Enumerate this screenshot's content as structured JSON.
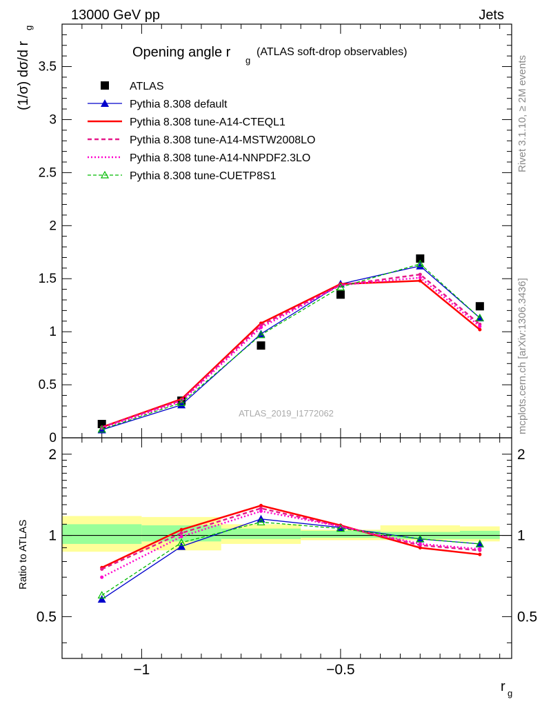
{
  "header": {
    "left": "13000 GeV pp",
    "right": "Jets"
  },
  "title": {
    "main": "Opening angle r",
    "sub": "g",
    "paren": "(ATLAS soft-drop observables)"
  },
  "analysis_label": "ATLAS_2019_I1772062",
  "side_labels": {
    "rivet": "Rivet 3.1.10, ≥ 2M events",
    "mcplots": "mcplots.cern.ch [arXiv:1306.3436]"
  },
  "colors": {
    "atlas": "#000000",
    "default": "#0000cc",
    "cteql1": "#ff0000",
    "mstw": "#e6198a",
    "nnpdf": "#ff00cc",
    "cuetp8s1": "#00bb00",
    "band_inner": "#99ff99",
    "band_outer": "#ffff99"
  },
  "chart_data": [
    {
      "type": "line",
      "ylabel": "(1/σ) dσ/d r",
      "ylabel_sub": "g",
      "xlim": [
        -1.2,
        -0.07
      ],
      "ylim": [
        0,
        3.9
      ],
      "x_ticks": [
        -1,
        -0.5
      ],
      "y_ticks": [
        0,
        0.5,
        1,
        1.5,
        2,
        2.5,
        3,
        3.5
      ],
      "y_tick_labels": [
        "0",
        "0.5",
        "1",
        "1.5",
        "2",
        "2.5",
        "3",
        "3.5"
      ],
      "x": [
        -1.1,
        -0.9,
        -0.7,
        -0.5,
        -0.3,
        -0.15
      ],
      "series": [
        {
          "name": "ATLAS",
          "style": "data",
          "values": [
            0.13,
            0.35,
            0.87,
            1.35,
            1.69,
            1.24
          ]
        },
        {
          "name": "Pythia 8.308 default",
          "style": "default",
          "values": [
            0.075,
            0.31,
            0.98,
            1.45,
            1.62,
            1.13
          ]
        },
        {
          "name": "Pythia 8.308 tune-A14-CTEQL1",
          "style": "cteql1",
          "values": [
            0.1,
            0.365,
            1.08,
            1.45,
            1.48,
            1.02
          ]
        },
        {
          "name": "Pythia 8.308 tune-A14-MSTW2008LO",
          "style": "mstw",
          "values": [
            0.1,
            0.355,
            1.06,
            1.44,
            1.54,
            1.07
          ]
        },
        {
          "name": "Pythia 8.308 tune-A14-NNPDF2.3LO",
          "style": "nnpdf",
          "values": [
            0.09,
            0.345,
            1.04,
            1.44,
            1.51,
            1.05
          ]
        },
        {
          "name": "Pythia 8.308 tune-CUETP8S1",
          "style": "cuetp8s1",
          "values": [
            0.08,
            0.33,
            0.97,
            1.42,
            1.64,
            1.13
          ]
        }
      ]
    },
    {
      "type": "line",
      "ylabel": "Ratio to ATLAS",
      "xlabel": "r",
      "xlabel_sub": "g",
      "xlim": [
        -1.2,
        -0.07
      ],
      "ylim": [
        0.35,
        2.3
      ],
      "log_y": true,
      "x_ticks": [
        -1,
        -0.5
      ],
      "x_tick_labels": [
        "−1",
        "−0.5"
      ],
      "y_ticks": [
        0.5,
        1,
        2
      ],
      "y_tick_labels": [
        "0.5",
        "1",
        "2"
      ],
      "x": [
        -1.1,
        -0.9,
        -0.7,
        -0.5,
        -0.3,
        -0.15
      ],
      "bins": [
        [
          -1.2,
          -1.0
        ],
        [
          -1.0,
          -0.8
        ],
        [
          -0.8,
          -0.6
        ],
        [
          -0.6,
          -0.4
        ],
        [
          -0.4,
          -0.2
        ],
        [
          -0.2,
          -0.1
        ]
      ],
      "band_inner": [
        [
          0.93,
          1.1
        ],
        [
          0.95,
          1.09
        ],
        [
          0.97,
          1.06
        ],
        [
          0.98,
          1.04
        ],
        [
          0.97,
          1.03
        ],
        [
          0.97,
          1.04
        ]
      ],
      "band_outer": [
        [
          0.87,
          1.18
        ],
        [
          0.88,
          1.17
        ],
        [
          0.93,
          1.1
        ],
        [
          0.96,
          1.05
        ],
        [
          0.96,
          1.09
        ],
        [
          0.95,
          1.08
        ]
      ],
      "series": [
        {
          "name": "Pythia 8.308 default",
          "style": "default",
          "values": [
            0.58,
            0.91,
            1.15,
            1.07,
            0.97,
            0.93
          ]
        },
        {
          "name": "Pythia 8.308 tune-A14-CTEQL1",
          "style": "cteql1",
          "values": [
            0.76,
            1.05,
            1.29,
            1.09,
            0.9,
            0.85
          ]
        },
        {
          "name": "Pythia 8.308 tune-A14-MSTW2008LO",
          "style": "mstw",
          "values": [
            0.75,
            1.02,
            1.26,
            1.08,
            0.92,
            0.88
          ]
        },
        {
          "name": "Pythia 8.308 tune-A14-NNPDF2.3LO",
          "style": "nnpdf",
          "values": [
            0.7,
            0.99,
            1.23,
            1.08,
            0.93,
            0.89
          ]
        },
        {
          "name": "Pythia 8.308 tune-CUETP8S1",
          "style": "cuetp8s1",
          "values": [
            0.6,
            0.94,
            1.12,
            1.06,
            0.97,
            0.93
          ]
        }
      ]
    }
  ]
}
